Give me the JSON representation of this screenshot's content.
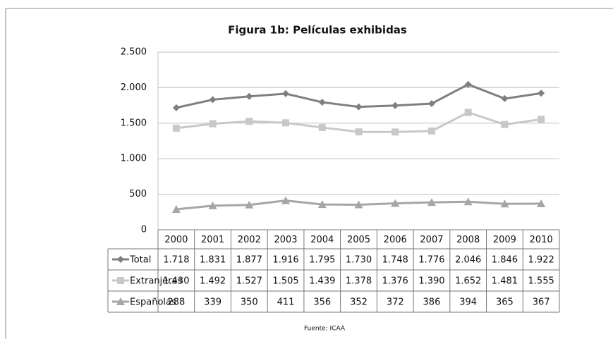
{
  "chart_data": {
    "type": "line",
    "title": "Figura 1b: Películas exhibidas",
    "source": "Fuente: ICAA",
    "categories": [
      "2000",
      "2001",
      "2002",
      "2003",
      "2004",
      "2005",
      "2006",
      "2007",
      "2008",
      "2009",
      "2010"
    ],
    "ylim": [
      0,
      2500
    ],
    "yticks": [
      0,
      500,
      {
        "value": 1000,
        "label": "1.000"
      },
      {
        "value": 1500,
        "label": "1.500"
      },
      {
        "value": 2000,
        "label": "2.000"
      },
      {
        "value": 2500,
        "label": "2.500"
      }
    ],
    "grid": true,
    "series": [
      {
        "name": "Total",
        "color": "#7f7f7f",
        "marker": "diamond",
        "values": [
          1718,
          1831,
          1877,
          1916,
          1795,
          1730,
          1748,
          1776,
          2046,
          1846,
          1922
        ],
        "value_labels": [
          "1.718",
          "1.831",
          "1.877",
          "1.916",
          "1.795",
          "1.730",
          "1.748",
          "1.776",
          "2.046",
          "1.846",
          "1.922"
        ]
      },
      {
        "name": "Extranjeras",
        "color": "#c8c8c8",
        "marker": "square",
        "values": [
          1430,
          1492,
          1527,
          1505,
          1439,
          1378,
          1376,
          1390,
          1652,
          1481,
          1555
        ],
        "value_labels": [
          "1.430",
          "1.492",
          "1.527",
          "1.505",
          "1.439",
          "1.378",
          "1.376",
          "1.390",
          "1.652",
          "1.481",
          "1.555"
        ]
      },
      {
        "name": "Españolas",
        "color": "#a6a6a6",
        "marker": "triangle",
        "values": [
          288,
          339,
          350,
          411,
          356,
          352,
          372,
          386,
          394,
          365,
          367
        ]
      }
    ]
  }
}
